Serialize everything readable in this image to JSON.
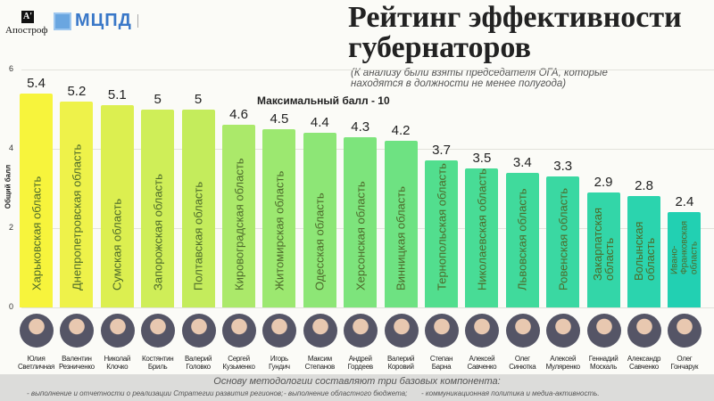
{
  "logos": {
    "apostrof": "Апостроф",
    "mcpd": "МЦПД"
  },
  "chart_data": {
    "type": "bar",
    "title": "Рейтинг эффективности губернаторов",
    "subtitle": "(К анализу были взяты председателя ОГА, которые находятся в должности не менее полугода)",
    "annotation": "Максимальный балл - 10",
    "ylabel": "Общий балл",
    "ylim": [
      0,
      6
    ],
    "yticks": [
      "0",
      "2",
      "4",
      "6"
    ],
    "grid": true,
    "categories": [
      "Харьковская область",
      "Днепропетровская область",
      "Сумская область",
      "Запорожская область",
      "Полтавская область",
      "Кировоградская область",
      "Житомирская область",
      "Одесская область",
      "Херсонская область",
      "Винницкая область",
      "Тернопольская область",
      "Николаевская область",
      "Львовская область",
      "Ровенская область",
      "Закарпатская область",
      "Волынская область",
      "Ивано-Франковская область"
    ],
    "values": [
      5.4,
      5.2,
      5.1,
      5,
      5,
      4.6,
      4.5,
      4.4,
      4.3,
      4.2,
      3.7,
      3.5,
      3.4,
      3.3,
      2.9,
      2.8,
      2.4
    ],
    "value_labels": [
      "5.4",
      "5.2",
      "5.1",
      "5",
      "5",
      "4.6",
      "4.5",
      "4.4",
      "4.3",
      "4.2",
      "3.7",
      "3.5",
      "3.4",
      "3.3",
      "2.9",
      "2.8",
      "2.4"
    ],
    "colors": [
      "#f7f43c",
      "#eef24a",
      "#dcef50",
      "#cfee58",
      "#c4ec5c",
      "#abe96a",
      "#9ce870",
      "#8de676",
      "#7de47c",
      "#6ee282",
      "#52de8e",
      "#48dc96",
      "#40da9c",
      "#3ad8a2",
      "#33d6a8",
      "#2bd4ae",
      "#22d0b2"
    ],
    "governors": [
      "Юлия Светличная",
      "Валентин Резниченко",
      "Николай Клочко",
      "Костянтин Бриль",
      "Валерий Головко",
      "Сергей Кузьменко",
      "Игорь Гундич",
      "Максим Степанов",
      "Андрей Гордеев",
      "Валерий Коровий",
      "Степан Барна",
      "Алексей Савченко",
      "Олег Синютка",
      "Алексей Муляренко",
      "Геннадий Москаль",
      "Александр Савченко",
      "Олег Гончарук"
    ]
  },
  "footer": {
    "title": "Основу методологии составляют три базовых компонента:",
    "items": [
      "- выполнение и отчетности о реализации Стратегии развития регионов;",
      "- выполнение областного бюджета;",
      "- коммуникационная политика и медиа-активность."
    ]
  }
}
